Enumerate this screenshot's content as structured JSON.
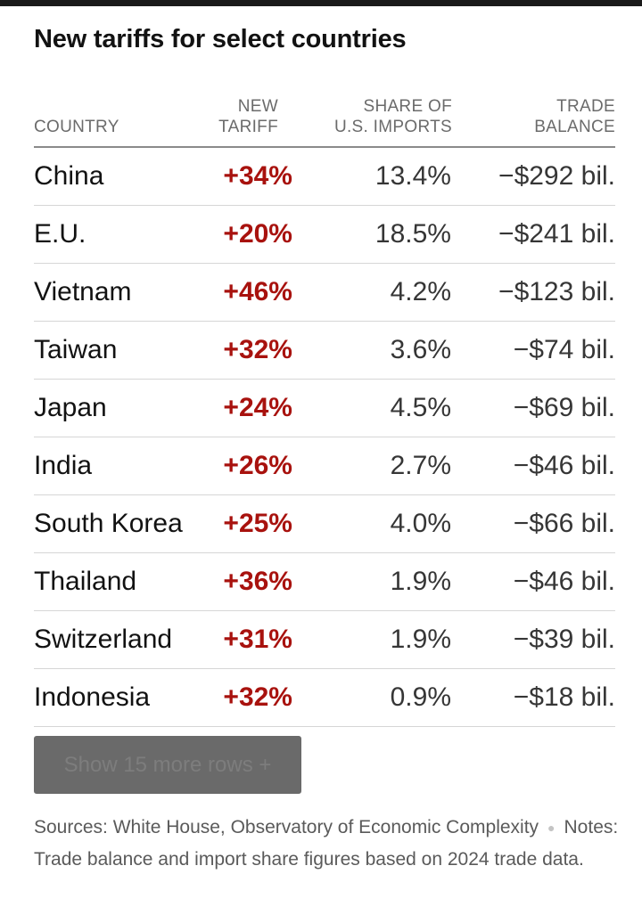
{
  "title": "New tariffs for select countries",
  "header": {
    "country": "COUNTRY",
    "tariff_l1": "NEW",
    "tariff_l2": "TARIFF",
    "share_l1": "SHARE OF",
    "share_l2": "U.S. IMPORTS",
    "balance_l1": "TRADE",
    "balance_l2": "BALANCE"
  },
  "rows": [
    {
      "country": "China",
      "tariff": "+34%",
      "share": "13.4%",
      "balance": "−$292 bil."
    },
    {
      "country": "E.U.",
      "tariff": "+20%",
      "share": "18.5%",
      "balance": "−$241 bil."
    },
    {
      "country": "Vietnam",
      "tariff": "+46%",
      "share": "4.2%",
      "balance": "−$123 bil."
    },
    {
      "country": "Taiwan",
      "tariff": "+32%",
      "share": "3.6%",
      "balance": "−$74 bil."
    },
    {
      "country": "Japan",
      "tariff": "+24%",
      "share": "4.5%",
      "balance": "−$69 bil."
    },
    {
      "country": "India",
      "tariff": "+26%",
      "share": "2.7%",
      "balance": "−$46 bil."
    },
    {
      "country": "South Korea",
      "tariff": "+25%",
      "share": "4.0%",
      "balance": "−$66 bil."
    },
    {
      "country": "Thailand",
      "tariff": "+36%",
      "share": "1.9%",
      "balance": "−$46 bil."
    },
    {
      "country": "Switzerland",
      "tariff": "+31%",
      "share": "1.9%",
      "balance": "−$39 bil."
    },
    {
      "country": "Indonesia",
      "tariff": "+32%",
      "share": "0.9%",
      "balance": "−$18 bil."
    }
  ],
  "more_button_label": "Show 15 more rows +",
  "footer": {
    "sources": "Sources: White House, Observatory of Economic Complexity",
    "notes": "Notes: Trade balance and import share figures based on 2024 trade data."
  },
  "colors": {
    "tariff_red": "#a8120e",
    "button_gray": "#6a6a6a"
  },
  "chart_data": {
    "type": "table",
    "title": "New tariffs for select countries",
    "columns": [
      "COUNTRY",
      "NEW TARIFF",
      "SHARE OF U.S. IMPORTS",
      "TRADE BALANCE"
    ],
    "rows": [
      [
        "China",
        "+34%",
        "13.4%",
        "−$292 bil."
      ],
      [
        "E.U.",
        "+20%",
        "18.5%",
        "−$241 bil."
      ],
      [
        "Vietnam",
        "+46%",
        "4.2%",
        "−$123 bil."
      ],
      [
        "Taiwan",
        "+32%",
        "3.6%",
        "−$74 bil."
      ],
      [
        "Japan",
        "+24%",
        "4.5%",
        "−$69 bil."
      ],
      [
        "India",
        "+26%",
        "2.7%",
        "−$46 bil."
      ],
      [
        "South Korea",
        "+25%",
        "4.0%",
        "−$66 bil."
      ],
      [
        "Thailand",
        "+36%",
        "1.9%",
        "−$46 bil."
      ],
      [
        "Switzerland",
        "+31%",
        "1.9%",
        "−$39 bil."
      ],
      [
        "Indonesia",
        "+32%",
        "0.9%",
        "−$18 bil."
      ]
    ]
  }
}
